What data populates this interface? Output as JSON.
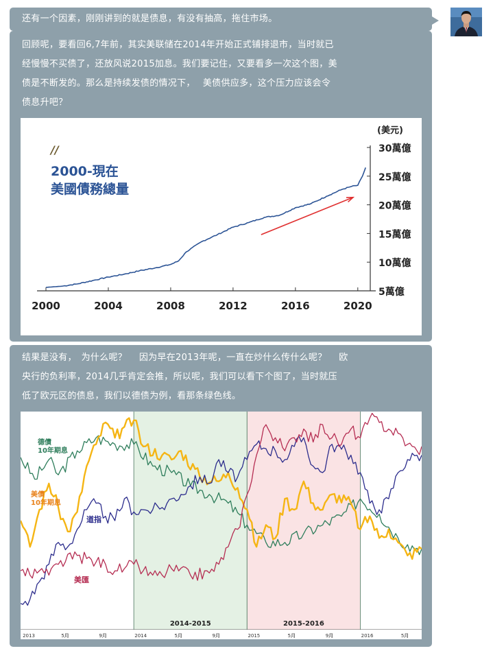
{
  "messages": [
    "还有一个因素，刚刚讲到的就是债息，有没有抽高，拖住市场。",
    "回顾呢，要看回6,7年前，其实美联储在2014年开始正式铺排退市，当时就已",
    "经慢慢不买债了，还放风说2015加息。我们要记住，又要看多一次这个图，美",
    "债是不断发的。那么是持续发债的情况下，　 美债供应多，这个压力应该会令",
    "债息升吧？",
    "结果是没有，　为什么呢？　 因为早在2013年呢，一直在炒什么传什么呢？　 欧",
    "央行的负利率，2014几乎肯定会推，所以呢，我们可以看下个图了，当时就压",
    "低了欧元区的债息，我们以德债为例，看那条绿色线。"
  ],
  "colors": {
    "bubble": "#8ea0aa",
    "debt_title": "#2b5395",
    "debt_line": "#2b5395",
    "arrow": "#e03131",
    "bund": "#2e7d5b",
    "ust": "#f5b514",
    "dow": "#2b2c8c",
    "usd": "#b52d52",
    "shade_green": "#e4f1e4",
    "shade_pink": "#fae3e4"
  },
  "chart_debt": {
    "type": "line",
    "title_mark": "//",
    "title_line1": "2000-現在",
    "title_line2": "美國債務總量",
    "unit_label": "(美元)",
    "y_ticks": [
      "30萬億",
      "25萬億",
      "20萬億",
      "15萬億",
      "10萬億",
      "5萬億"
    ],
    "y_tick_values": [
      30,
      25,
      20,
      15,
      10,
      5
    ],
    "x_ticks": [
      "2000",
      "2004",
      "2008",
      "2012",
      "2016",
      "2020"
    ],
    "x_tick_values": [
      2000,
      2004,
      2008,
      2012,
      2016,
      2020
    ],
    "xlim": [
      2000,
      2020.8
    ],
    "ylim": [
      5,
      30
    ],
    "x": [
      2000,
      2001,
      2002,
      2003,
      2004,
      2005,
      2006,
      2007,
      2008,
      2008.5,
      2009,
      2010,
      2011,
      2012,
      2013,
      2014,
      2015,
      2016,
      2017,
      2018,
      2019,
      2019.6,
      2020,
      2020.3,
      2020.5
    ],
    "values": [
      5.6,
      5.8,
      6.2,
      6.8,
      7.4,
      7.9,
      8.5,
      9.0,
      9.6,
      10.2,
      11.8,
      13.6,
      14.8,
      16.1,
      16.9,
      17.8,
      18.2,
      19.5,
      20.2,
      21.5,
      22.7,
      23.2,
      23.4,
      25.0,
      26.5
    ],
    "arrow": {
      "from": [
        2013.8,
        14.8
      ],
      "to": [
        2019.7,
        21.3
      ]
    }
  },
  "chart_multi": {
    "type": "line",
    "legend": {
      "bund": "德債\n10年期息",
      "ust": "美債\n10年期息",
      "dow": "道指",
      "usd": "美匯"
    },
    "periods": [
      {
        "label": "2014-2015",
        "from": 12,
        "to": 24
      },
      {
        "label": "2015-2016",
        "from": 24,
        "to": 36
      }
    ],
    "x_ticks": [
      "2013",
      "5月",
      "9月",
      "2014",
      "5月",
      "9月",
      "2015",
      "5月",
      "9月",
      "2016",
      "5月"
    ],
    "x_tick_positions": [
      0,
      4,
      8,
      12,
      16,
      20,
      24,
      28,
      32,
      36,
      40
    ],
    "x_domain": [
      0,
      42.5
    ],
    "series": [
      {
        "key": "bund",
        "color": "#2e7d5b",
        "points": [
          [
            0,
            0.79
          ],
          [
            1.5,
            0.69
          ],
          [
            3,
            0.78
          ],
          [
            4,
            0.71
          ],
          [
            6,
            0.82
          ],
          [
            8,
            0.88
          ],
          [
            10,
            0.85
          ],
          [
            12,
            0.85
          ],
          [
            14,
            0.75
          ],
          [
            16,
            0.72
          ],
          [
            18,
            0.66
          ],
          [
            20,
            0.62
          ],
          [
            22,
            0.58
          ],
          [
            24,
            0.48
          ],
          [
            26,
            0.4
          ],
          [
            28,
            0.4
          ],
          [
            30,
            0.44
          ],
          [
            32,
            0.48
          ],
          [
            34,
            0.52
          ],
          [
            36,
            0.6
          ],
          [
            38,
            0.53
          ],
          [
            40,
            0.42
          ],
          [
            41,
            0.39
          ],
          [
            42.5,
            0.37
          ]
        ]
      },
      {
        "key": "ust",
        "color": "#f5b514",
        "points": [
          [
            0,
            0.5
          ],
          [
            1,
            0.38
          ],
          [
            2,
            0.55
          ],
          [
            3,
            0.67
          ],
          [
            4,
            0.56
          ],
          [
            5,
            0.45
          ],
          [
            6,
            0.54
          ],
          [
            7,
            0.75
          ],
          [
            8,
            0.85
          ],
          [
            9,
            0.95
          ],
          [
            10,
            0.88
          ],
          [
            11,
            0.93
          ],
          [
            12,
            0.96
          ],
          [
            13,
            0.84
          ],
          [
            15,
            0.8
          ],
          [
            16,
            0.78
          ],
          [
            17,
            0.82
          ],
          [
            19,
            0.7
          ],
          [
            21,
            0.68
          ],
          [
            22,
            0.72
          ],
          [
            23,
            0.65
          ],
          [
            24,
            0.55
          ],
          [
            25,
            0.38
          ],
          [
            26,
            0.48
          ],
          [
            27,
            0.42
          ],
          [
            28,
            0.6
          ],
          [
            29,
            0.55
          ],
          [
            30,
            0.68
          ],
          [
            31,
            0.58
          ],
          [
            32,
            0.55
          ],
          [
            33,
            0.62
          ],
          [
            35,
            0.58
          ],
          [
            36,
            0.46
          ],
          [
            37,
            0.52
          ],
          [
            38,
            0.42
          ],
          [
            39,
            0.46
          ],
          [
            40,
            0.4
          ],
          [
            41,
            0.34
          ],
          [
            42.5,
            0.37
          ]
        ]
      },
      {
        "key": "dow",
        "color": "#2b2c8c",
        "points": [
          [
            0,
            0.12
          ],
          [
            1,
            0.14
          ],
          [
            2,
            0.22
          ],
          [
            3,
            0.3
          ],
          [
            4,
            0.4
          ],
          [
            5,
            0.38
          ],
          [
            6,
            0.46
          ],
          [
            7,
            0.55
          ],
          [
            8,
            0.58
          ],
          [
            9,
            0.52
          ],
          [
            10,
            0.5
          ],
          [
            11,
            0.6
          ],
          [
            12,
            0.54
          ],
          [
            13,
            0.55
          ],
          [
            14,
            0.55
          ],
          [
            15,
            0.56
          ],
          [
            16,
            0.6
          ],
          [
            17,
            0.62
          ],
          [
            18,
            0.66
          ],
          [
            19,
            0.7
          ],
          [
            20,
            0.67
          ],
          [
            21,
            0.78
          ],
          [
            22,
            0.72
          ],
          [
            23,
            0.7
          ],
          [
            24,
            0.78
          ],
          [
            25,
            0.85
          ],
          [
            26,
            0.83
          ],
          [
            27,
            0.82
          ],
          [
            28,
            0.78
          ],
          [
            29,
            0.84
          ],
          [
            30,
            0.88
          ],
          [
            31,
            0.75
          ],
          [
            32,
            0.72
          ],
          [
            33,
            0.85
          ],
          [
            35,
            0.8
          ],
          [
            36,
            0.72
          ],
          [
            37,
            0.58
          ],
          [
            38,
            0.55
          ],
          [
            39,
            0.6
          ],
          [
            40,
            0.72
          ],
          [
            41,
            0.78
          ],
          [
            42,
            0.8
          ],
          [
            42.5,
            0.8
          ]
        ]
      },
      {
        "key": "usd",
        "color": "#b52d52",
        "points": [
          [
            0,
            0.27
          ],
          [
            1,
            0.25
          ],
          [
            2,
            0.27
          ],
          [
            3,
            0.25
          ],
          [
            4,
            0.3
          ],
          [
            6,
            0.34
          ],
          [
            8,
            0.31
          ],
          [
            9,
            0.3
          ],
          [
            10,
            0.27
          ],
          [
            11,
            0.28
          ],
          [
            12,
            0.3
          ],
          [
            13,
            0.27
          ],
          [
            14,
            0.25
          ],
          [
            15,
            0.25
          ],
          [
            16,
            0.28
          ],
          [
            18,
            0.25
          ],
          [
            20,
            0.26
          ],
          [
            21,
            0.3
          ],
          [
            22,
            0.38
          ],
          [
            23,
            0.46
          ],
          [
            24,
            0.62
          ],
          [
            25,
            0.8
          ],
          [
            26,
            0.94
          ],
          [
            27,
            0.88
          ],
          [
            28,
            0.82
          ],
          [
            29,
            0.88
          ],
          [
            30,
            0.92
          ],
          [
            31,
            0.86
          ],
          [
            32,
            0.94
          ],
          [
            33,
            0.88
          ],
          [
            34,
            0.85
          ],
          [
            35,
            0.92
          ],
          [
            36,
            0.88
          ],
          [
            37,
            0.97
          ],
          [
            38,
            0.95
          ],
          [
            39,
            0.92
          ],
          [
            40,
            0.9
          ],
          [
            41,
            0.85
          ],
          [
            42,
            0.82
          ],
          [
            42.5,
            0.84
          ]
        ]
      }
    ]
  }
}
